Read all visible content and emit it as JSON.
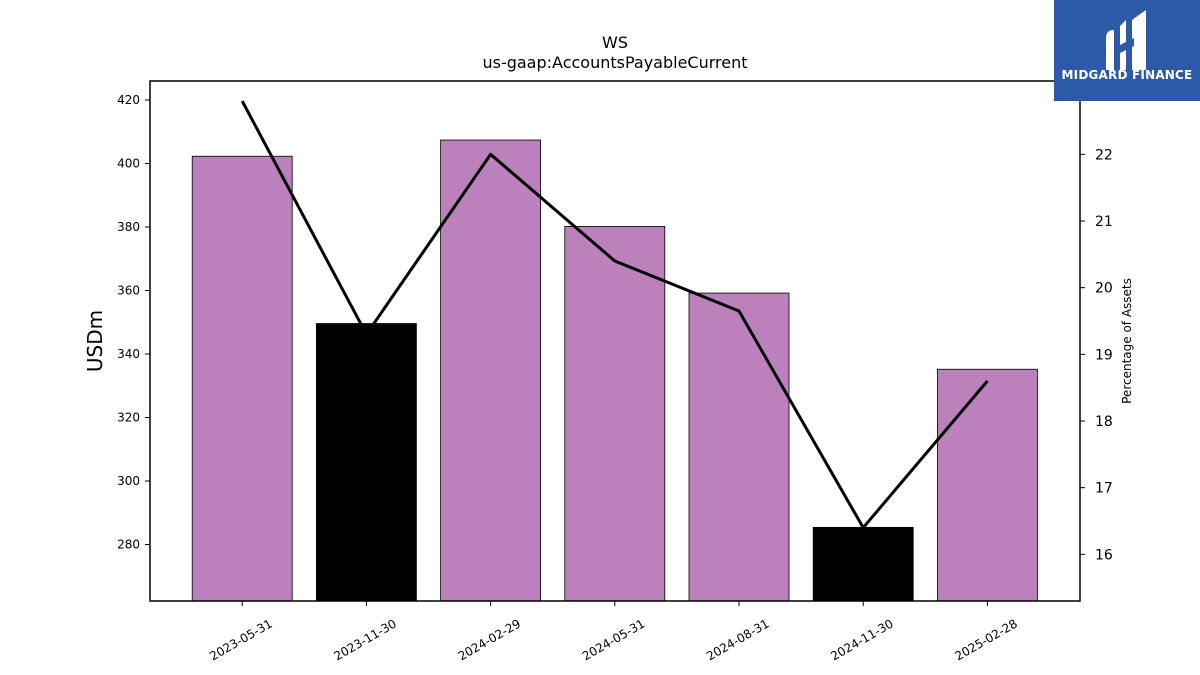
{
  "brand": {
    "name": "MIDGARD FINANCE",
    "color": "#2c5aa8"
  },
  "chart_data": {
    "type": "bar",
    "title": "WS",
    "subtitle": "us-gaap:AccountsPayableCurrent",
    "ylabel": "USDm",
    "y2label": "Percentage of Assets",
    "categories": [
      "2023-05-31",
      "2023-11-30",
      "2024-02-29",
      "2024-05-31",
      "2024-08-31",
      "2024-11-30",
      "2025-02-28"
    ],
    "series": [
      {
        "values": [
          402.3,
          349.6,
          407.4,
          380.2,
          359.2,
          285.4,
          335.2
        ],
        "bar_colors": [
          "#bc80bd",
          "#000000",
          "#bc80bd",
          "#bc80bd",
          "#bc80bd",
          "#000000",
          "#bc80bd"
        ]
      },
      {
        "axis": "right",
        "type": "line",
        "color": "#000000",
        "values": [
          22.8,
          19.3,
          22.0,
          20.4,
          19.65,
          16.4,
          18.6
        ]
      }
    ],
    "ylim": [
      262.2,
      426
    ],
    "yticks": [
      280,
      300,
      320,
      340,
      360,
      380,
      400,
      420
    ],
    "y2lim": [
      15.3,
      23.1
    ],
    "y2ticks": [
      16,
      17,
      18,
      19,
      20,
      21,
      22
    ]
  }
}
